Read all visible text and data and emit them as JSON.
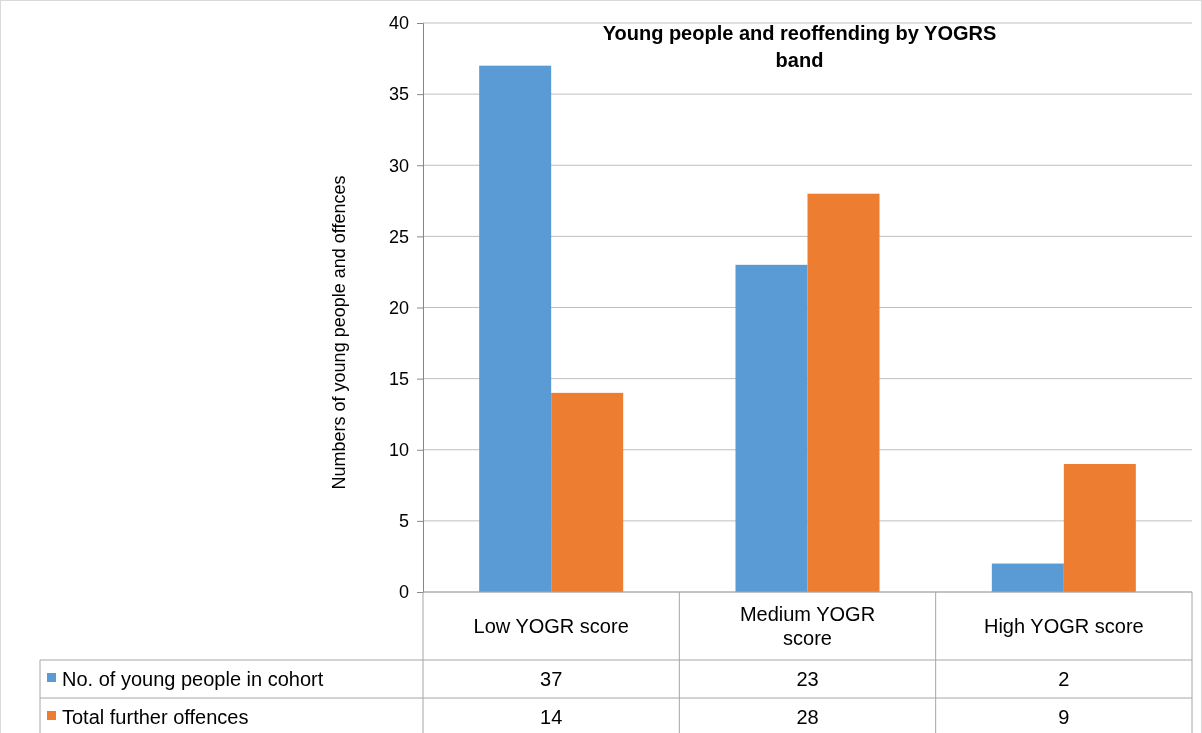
{
  "chart_data": {
    "type": "bar",
    "title": "Young people and reoffending by YOGRS band",
    "ylabel": "Numbers of young people and offences",
    "categories": [
      "Low YOGR score",
      "Medium YOGR score",
      "High YOGR score"
    ],
    "series": [
      {
        "name": "No. of young people in cohort",
        "color": "#5b9bd5",
        "values": [
          37,
          23,
          2
        ]
      },
      {
        "name": "Total further offences",
        "color": "#ed7d31",
        "values": [
          14,
          28,
          9
        ]
      }
    ],
    "ylim": [
      0,
      40
    ],
    "yticks": [
      0,
      5,
      10,
      15,
      20,
      25,
      30,
      35,
      40
    ],
    "grid": "y",
    "legend": "bottom",
    "data_labels": true
  }
}
